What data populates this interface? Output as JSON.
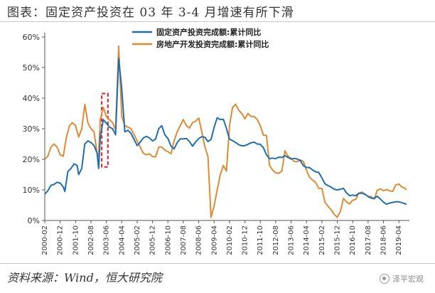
{
  "title": "图表：固定资产投资在 03 年 3-4 月增速有所下滑",
  "source": "资料来源：Wind，恒大研究院",
  "watermark": "泽平宏观",
  "chart_data": {
    "type": "line",
    "ylim": [
      0,
      60
    ],
    "y_ticks": [
      0,
      10,
      20,
      30,
      40,
      50,
      60
    ],
    "y_tick_labels": [
      "0%",
      "10%",
      "20%",
      "30%",
      "40%",
      "50%",
      "60%"
    ],
    "x_tick_labels": [
      "2000-02",
      "2000-12",
      "2001-10",
      "2002-08",
      "2003-06",
      "2004-04",
      "2005-02",
      "2005-12",
      "2006-10",
      "2007-08",
      "2008-06",
      "2009-04",
      "2010-02",
      "2010-12",
      "2011-10",
      "2012-08",
      "2013-06",
      "2014-04",
      "2015-02",
      "2015-12",
      "2016-10",
      "2017-08",
      "2018-06",
      "2019-04"
    ],
    "xlim": [
      "2000-02",
      "2019-09"
    ],
    "grid": false,
    "legend_position": "top-center",
    "highlight_box": {
      "x_start": "2003-03",
      "x_end": "2003-07",
      "y_low": 17.5,
      "y_high": 41.5,
      "color": "#e02020"
    },
    "series": [
      {
        "name": "固定资产投资完成额:累计同比",
        "color": "#1f6fb0",
        "points": [
          [
            "2000-02",
            8.6
          ],
          [
            "2000-04",
            9.7
          ],
          [
            "2000-06",
            11.5
          ],
          [
            "2000-08",
            11.8
          ],
          [
            "2000-10",
            12.5
          ],
          [
            "2000-12",
            12.2
          ],
          [
            "2001-02",
            11.0
          ],
          [
            "2001-03",
            9.5
          ],
          [
            "2001-05",
            16.0
          ],
          [
            "2001-07",
            17.0
          ],
          [
            "2001-09",
            18.5
          ],
          [
            "2001-11",
            18.0
          ],
          [
            "2001-12",
            15.0
          ],
          [
            "2002-02",
            17.0
          ],
          [
            "2002-04",
            25.0
          ],
          [
            "2002-06",
            26.0
          ],
          [
            "2002-08",
            25.5
          ],
          [
            "2002-10",
            24.5
          ],
          [
            "2002-12",
            22.0
          ],
          [
            "2003-01",
            17.0
          ],
          [
            "2003-02",
            27.0
          ],
          [
            "2003-04",
            33.0
          ],
          [
            "2003-06",
            31.8
          ],
          [
            "2003-08",
            30.5
          ],
          [
            "2003-10",
            30.0
          ],
          [
            "2003-12",
            28.0
          ],
          [
            "2004-02",
            53.0
          ],
          [
            "2004-04",
            43.0
          ],
          [
            "2004-06",
            29.0
          ],
          [
            "2004-08",
            29.5
          ],
          [
            "2004-10",
            28.5
          ],
          [
            "2004-12",
            26.5
          ],
          [
            "2005-02",
            24.5
          ],
          [
            "2005-04",
            25.6
          ],
          [
            "2005-06",
            27.0
          ],
          [
            "2005-08",
            27.5
          ],
          [
            "2005-10",
            27.0
          ],
          [
            "2005-12",
            26.0
          ],
          [
            "2006-02",
            26.6
          ],
          [
            "2006-04",
            30.0
          ],
          [
            "2006-06",
            31.0
          ],
          [
            "2006-08",
            28.0
          ],
          [
            "2006-10",
            26.8
          ],
          [
            "2006-12",
            24.3
          ],
          [
            "2007-02",
            23.4
          ],
          [
            "2007-04",
            25.5
          ],
          [
            "2007-06",
            26.7
          ],
          [
            "2007-08",
            26.7
          ],
          [
            "2007-10",
            26.8
          ],
          [
            "2007-12",
            25.8
          ],
          [
            "2008-02",
            24.3
          ],
          [
            "2008-04",
            25.7
          ],
          [
            "2008-06",
            26.8
          ],
          [
            "2008-08",
            27.4
          ],
          [
            "2008-10",
            27.2
          ],
          [
            "2008-12",
            25.8
          ],
          [
            "2009-02",
            26.5
          ],
          [
            "2009-04",
            30.5
          ],
          [
            "2009-06",
            33.6
          ],
          [
            "2009-08",
            33.0
          ],
          [
            "2009-10",
            33.1
          ],
          [
            "2009-12",
            30.1
          ],
          [
            "2010-02",
            26.6
          ],
          [
            "2010-04",
            26.1
          ],
          [
            "2010-06",
            25.5
          ],
          [
            "2010-08",
            24.8
          ],
          [
            "2010-10",
            24.4
          ],
          [
            "2010-12",
            24.5
          ],
          [
            "2011-02",
            24.9
          ],
          [
            "2011-04",
            25.4
          ],
          [
            "2011-06",
            25.6
          ],
          [
            "2011-08",
            25.0
          ],
          [
            "2011-10",
            24.9
          ],
          [
            "2011-12",
            23.8
          ],
          [
            "2012-02",
            21.5
          ],
          [
            "2012-04",
            20.2
          ],
          [
            "2012-06",
            20.4
          ],
          [
            "2012-08",
            20.2
          ],
          [
            "2012-10",
            20.7
          ],
          [
            "2012-12",
            20.6
          ],
          [
            "2013-02",
            21.2
          ],
          [
            "2013-04",
            20.6
          ],
          [
            "2013-06",
            20.1
          ],
          [
            "2013-08",
            20.3
          ],
          [
            "2013-10",
            20.1
          ],
          [
            "2013-12",
            19.6
          ],
          [
            "2014-02",
            17.9
          ],
          [
            "2014-04",
            17.3
          ],
          [
            "2014-06",
            17.3
          ],
          [
            "2014-08",
            16.5
          ],
          [
            "2014-10",
            15.9
          ],
          [
            "2014-12",
            15.7
          ],
          [
            "2015-02",
            13.9
          ],
          [
            "2015-04",
            12.0
          ],
          [
            "2015-06",
            11.4
          ],
          [
            "2015-08",
            10.9
          ],
          [
            "2015-10",
            10.2
          ],
          [
            "2015-12",
            10.0
          ],
          [
            "2016-02",
            10.2
          ],
          [
            "2016-04",
            10.5
          ],
          [
            "2016-06",
            9.0
          ],
          [
            "2016-08",
            8.1
          ],
          [
            "2016-10",
            8.3
          ],
          [
            "2016-12",
            8.1
          ],
          [
            "2017-02",
            8.9
          ],
          [
            "2017-04",
            8.9
          ],
          [
            "2017-06",
            8.6
          ],
          [
            "2017-08",
            7.8
          ],
          [
            "2017-10",
            7.3
          ],
          [
            "2017-12",
            7.2
          ],
          [
            "2018-02",
            7.9
          ],
          [
            "2018-04",
            7.0
          ],
          [
            "2018-06",
            6.0
          ],
          [
            "2018-08",
            5.3
          ],
          [
            "2018-10",
            5.7
          ],
          [
            "2018-12",
            5.9
          ],
          [
            "2019-02",
            6.1
          ],
          [
            "2019-04",
            6.1
          ],
          [
            "2019-06",
            5.8
          ],
          [
            "2019-08",
            5.5
          ],
          [
            "2019-09",
            5.2
          ]
        ]
      },
      {
        "name": "房地产开发投资完成额:累计同比",
        "color": "#e08a33",
        "points": [
          [
            "2000-02",
            20.0
          ],
          [
            "2000-04",
            21.0
          ],
          [
            "2000-06",
            24.0
          ],
          [
            "2000-08",
            25.0
          ],
          [
            "2000-10",
            24.0
          ],
          [
            "2000-12",
            21.5
          ],
          [
            "2001-02",
            21.0
          ],
          [
            "2001-04",
            27.0
          ],
          [
            "2001-06",
            31.0
          ],
          [
            "2001-08",
            32.0
          ],
          [
            "2001-10",
            31.0
          ],
          [
            "2001-12",
            27.3
          ],
          [
            "2002-02",
            30.0
          ],
          [
            "2002-04",
            38.0
          ],
          [
            "2002-06",
            32.0
          ],
          [
            "2002-08",
            30.0
          ],
          [
            "2002-10",
            29.0
          ],
          [
            "2002-12",
            21.9
          ],
          [
            "2003-01",
            21.0
          ],
          [
            "2003-02",
            33.0
          ],
          [
            "2003-04",
            37.0
          ],
          [
            "2003-06",
            34.0
          ],
          [
            "2003-08",
            33.0
          ],
          [
            "2003-10",
            32.0
          ],
          [
            "2003-12",
            29.7
          ],
          [
            "2004-02",
            57.0
          ],
          [
            "2004-04",
            34.0
          ],
          [
            "2004-06",
            31.0
          ],
          [
            "2004-08",
            30.5
          ],
          [
            "2004-10",
            30.0
          ],
          [
            "2004-12",
            28.1
          ],
          [
            "2005-02",
            26.0
          ],
          [
            "2005-04",
            24.0
          ],
          [
            "2005-06",
            22.0
          ],
          [
            "2005-08",
            21.5
          ],
          [
            "2005-10",
            21.8
          ],
          [
            "2005-12",
            20.9
          ],
          [
            "2006-02",
            20.8
          ],
          [
            "2006-04",
            24.0
          ],
          [
            "2006-06",
            24.0
          ],
          [
            "2006-08",
            23.0
          ],
          [
            "2006-10",
            22.5
          ],
          [
            "2006-12",
            21.8
          ],
          [
            "2007-02",
            26.0
          ],
          [
            "2007-04",
            29.0
          ],
          [
            "2007-06",
            31.0
          ],
          [
            "2007-08",
            33.0
          ],
          [
            "2007-10",
            31.0
          ],
          [
            "2007-12",
            30.2
          ],
          [
            "2008-02",
            32.0
          ],
          [
            "2008-04",
            32.5
          ],
          [
            "2008-06",
            33.5
          ],
          [
            "2008-08",
            29.0
          ],
          [
            "2008-10",
            24.0
          ],
          [
            "2008-12",
            20.9
          ],
          [
            "2009-02",
            1.0
          ],
          [
            "2009-04",
            4.9
          ],
          [
            "2009-06",
            10.0
          ],
          [
            "2009-08",
            15.0
          ],
          [
            "2009-10",
            18.0
          ],
          [
            "2009-12",
            16.1
          ],
          [
            "2010-02",
            31.0
          ],
          [
            "2010-04",
            37.0
          ],
          [
            "2010-06",
            38.0
          ],
          [
            "2010-08",
            36.0
          ],
          [
            "2010-10",
            35.0
          ],
          [
            "2010-12",
            33.2
          ],
          [
            "2011-02",
            35.0
          ],
          [
            "2011-04",
            34.0
          ],
          [
            "2011-06",
            34.0
          ],
          [
            "2011-08",
            33.0
          ],
          [
            "2011-10",
            31.0
          ],
          [
            "2011-12",
            27.9
          ],
          [
            "2012-02",
            27.8
          ],
          [
            "2012-04",
            18.0
          ],
          [
            "2012-06",
            16.5
          ],
          [
            "2012-08",
            15.6
          ],
          [
            "2012-10",
            15.4
          ],
          [
            "2012-12",
            16.2
          ],
          [
            "2013-02",
            22.8
          ],
          [
            "2013-04",
            21.0
          ],
          [
            "2013-06",
            20.3
          ],
          [
            "2013-08",
            19.3
          ],
          [
            "2013-10",
            19.2
          ],
          [
            "2013-12",
            19.8
          ],
          [
            "2014-02",
            19.3
          ],
          [
            "2014-04",
            16.4
          ],
          [
            "2014-06",
            14.1
          ],
          [
            "2014-08",
            13.2
          ],
          [
            "2014-10",
            12.4
          ],
          [
            "2014-12",
            10.5
          ],
          [
            "2015-02",
            10.4
          ],
          [
            "2015-04",
            6.0
          ],
          [
            "2015-06",
            4.6
          ],
          [
            "2015-08",
            3.5
          ],
          [
            "2015-10",
            2.0
          ],
          [
            "2015-12",
            1.0
          ],
          [
            "2016-02",
            3.0
          ],
          [
            "2016-04",
            7.2
          ],
          [
            "2016-06",
            6.1
          ],
          [
            "2016-08",
            5.4
          ],
          [
            "2016-10",
            6.6
          ],
          [
            "2016-12",
            6.9
          ],
          [
            "2017-02",
            8.9
          ],
          [
            "2017-04",
            9.3
          ],
          [
            "2017-06",
            8.5
          ],
          [
            "2017-08",
            7.9
          ],
          [
            "2017-10",
            7.8
          ],
          [
            "2017-12",
            7.0
          ],
          [
            "2018-02",
            9.9
          ],
          [
            "2018-04",
            10.3
          ],
          [
            "2018-06",
            9.7
          ],
          [
            "2018-08",
            10.1
          ],
          [
            "2018-10",
            9.7
          ],
          [
            "2018-12",
            9.5
          ],
          [
            "2019-02",
            11.6
          ],
          [
            "2019-04",
            11.9
          ],
          [
            "2019-06",
            10.9
          ],
          [
            "2019-08",
            10.5
          ],
          [
            "2019-09",
            10.0
          ]
        ]
      }
    ]
  }
}
